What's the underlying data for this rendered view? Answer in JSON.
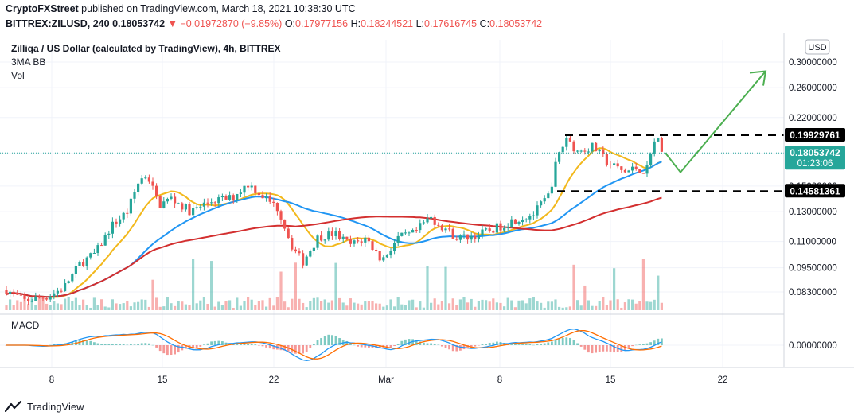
{
  "header": {
    "publisher": "CryptoFXStreet",
    "published_text": "published on TradingView.com, March 18, 2021 10:38:30 UTC",
    "symbol": "BITTREX:ZILUSD, 240",
    "last": "0.18053742",
    "change": "−0.01972870 (−9.85%)",
    "o_label": "O:",
    "o_val": "0.17977156",
    "h_label": "H:",
    "h_val": "0.18244521",
    "l_label": "L:",
    "l_val": "0.17616745",
    "c_label": "C:",
    "c_val": "0.18053742"
  },
  "legend": {
    "title": "Zilliqa / US Dollar (calculated by TradingView), 4h, BITTREX",
    "indicator1": "3MA BB",
    "indicator2": "Vol"
  },
  "currency_button": "USD",
  "macd_label": "MACD",
  "footer": {
    "brand": "TradingView"
  },
  "colors": {
    "up": "#26a69a",
    "down": "#ef5350",
    "ma_fast": "#f2b81c",
    "ma_mid": "#2196f3",
    "ma_slow": "#d32f2f",
    "arrow": "#4caf50",
    "price_badge": "#26a69a"
  },
  "chart_data": {
    "type": "candlestick",
    "price_axis": {
      "ticks": [
        0.3,
        0.26,
        0.22,
        0.18,
        0.15,
        0.13,
        0.11,
        0.095,
        0.083
      ],
      "tick_labels": [
        "0.30000000",
        "0.26000000",
        "0.22000000",
        "0.18000000",
        "0.15000000",
        "0.13000000",
        "0.11000000",
        "0.09500000",
        "0.08300000"
      ],
      "scale": "log"
    },
    "price_labels": [
      {
        "value": "0.19929761",
        "price": 0.19929761,
        "style": "black"
      },
      {
        "value": "0.18053742",
        "sub": "01:23:06",
        "price": 0.18053742,
        "style": "green"
      },
      {
        "value": "0.14581361",
        "price": 0.14581361,
        "style": "black"
      }
    ],
    "macd_axis": {
      "tick_labels": [
        "0.00000000"
      ]
    },
    "time_axis": {
      "labels": [
        "8",
        "15",
        "22",
        "Mar",
        "8",
        "15",
        "22"
      ]
    },
    "annotations": {
      "resistance": 0.1993,
      "support": 0.1458,
      "projection": [
        [
          0.1805,
          0
        ],
        [
          0.162,
          1
        ],
        [
          0.285,
          1
        ]
      ]
    }
  }
}
